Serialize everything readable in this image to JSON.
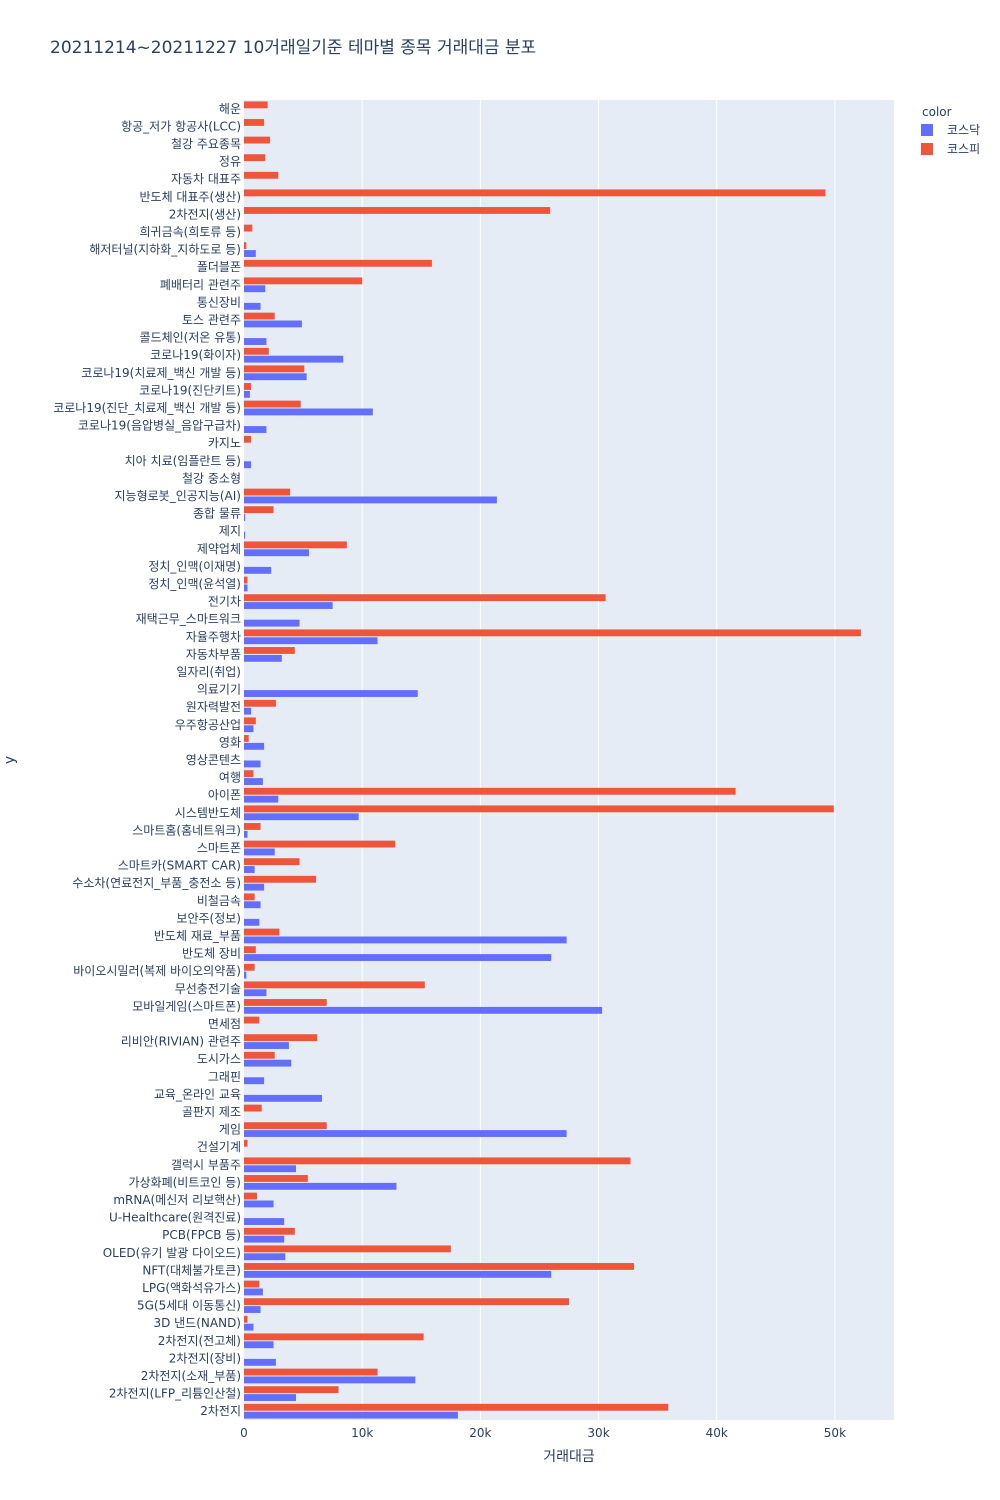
{
  "chart_data": {
    "type": "bar",
    "orientation": "horizontal",
    "barmode": "group",
    "title": "20211214~20211227 10거래일기준 테마별 종목 거래대금 분포",
    "xlabel": "거래대금",
    "ylabel": "y",
    "xlim": [
      0,
      55000
    ],
    "xticks": [
      {
        "value": 0,
        "label": "0"
      },
      {
        "value": 10000,
        "label": "10k"
      },
      {
        "value": 20000,
        "label": "20k"
      },
      {
        "value": 30000,
        "label": "30k"
      },
      {
        "value": 40000,
        "label": "40k"
      },
      {
        "value": 50000,
        "label": "50k"
      }
    ],
    "grid": true,
    "legend": {
      "title": "color",
      "position": "top-right"
    },
    "categories": [
      "2차전지",
      "2차전지(LFP_리튬인산철)",
      "2차전지(소재_부품)",
      "2차전지(장비)",
      "2차전지(전고체)",
      "3D 낸드(NAND)",
      "5G(5세대 이동통신)",
      "LPG(액화석유가스)",
      "NFT(대체불가토큰)",
      "OLED(유기 발광 다이오드)",
      "PCB(FPCB 등)",
      "U-Healthcare(원격진료)",
      "mRNA(메신저 리보핵산)",
      "가상화폐(비트코인 등)",
      "갤럭시 부품주",
      "건설기계",
      "게임",
      "골판지 제조",
      "교육_온라인 교육",
      "그래핀",
      "도시가스",
      "리비안(RIVIAN) 관련주",
      "면세점",
      "모바일게임(스마트폰)",
      "무선충전기술",
      "바이오시밀러(복제 바이오의약품)",
      "반도체 장비",
      "반도체 재료_부품",
      "보안주(정보)",
      "비철금속",
      "수소차(연료전지_부품_충전소 등)",
      "스마트카(SMART CAR)",
      "스마트폰",
      "스마트홈(홈네트워크)",
      "시스템반도체",
      "아이폰",
      "여행",
      "영상콘텐츠",
      "영화",
      "우주항공산업",
      "원자력발전",
      "의료기기",
      "일자리(취업)",
      "자동차부품",
      "자율주행차",
      "재택근무_스마트워크",
      "전기차",
      "정치_인맥(윤석열)",
      "정치_인맥(이재명)",
      "제약업체",
      "제지",
      "종합 물류",
      "지능형로봇_인공지능(AI)",
      "철강 중소형",
      "치아 치료(임플란트 등)",
      "카지노",
      "코로나19(음압병실_음압구급차)",
      "코로나19(진단_치료제_백신 개발 등)",
      "코로나19(진단키트)",
      "코로나19(치료제_백신 개발 등)",
      "코로나19(화이자)",
      "콜드체인(저온 유통)",
      "토스 관련주",
      "통신장비",
      "폐배터리 관련주",
      "폴더블폰",
      "해저터널(지하화_지하도로 등)",
      "희귀금속(희토류 등)",
      "2차전지(생산)",
      "반도체 대표주(생산)",
      "자동차 대표주",
      "정유",
      "철강 주요종목",
      "항공_저가 항공사(LCC)",
      "해운"
    ],
    "series": [
      {
        "name": "코스닥",
        "color": "#636efa",
        "values": [
          18100,
          4400,
          14500,
          2700,
          2500,
          800,
          1400,
          1600,
          26000,
          3500,
          3400,
          3400,
          2500,
          12900,
          4400,
          0,
          27300,
          0,
          6600,
          1700,
          4000,
          3800,
          0,
          30300,
          1900,
          200,
          26000,
          27300,
          1300,
          1400,
          1700,
          900,
          2600,
          300,
          9700,
          2900,
          1600,
          1400,
          1700,
          800,
          600,
          14700,
          0,
          3200,
          11300,
          4700,
          7500,
          300,
          2300,
          5500,
          100,
          100,
          21400,
          0,
          600,
          0,
          1900,
          10900,
          500,
          5300,
          8400,
          1900,
          4900,
          1400,
          1800,
          0,
          1000,
          0,
          0,
          0,
          0,
          0,
          0,
          0,
          0
        ]
      },
      {
        "name": "코스피",
        "color": "#ef553b",
        "values": [
          35900,
          8000,
          11300,
          0,
          15200,
          300,
          27500,
          1300,
          33000,
          17500,
          4300,
          0,
          1100,
          5400,
          32700,
          300,
          7000,
          1500,
          0,
          0,
          2600,
          6200,
          1300,
          7000,
          15300,
          900,
          1000,
          3000,
          0,
          900,
          6100,
          4700,
          12800,
          1400,
          49900,
          41600,
          800,
          0,
          400,
          1000,
          2700,
          0,
          0,
          4300,
          52200,
          0,
          30600,
          300,
          0,
          8700,
          0,
          2500,
          3900,
          0,
          0,
          600,
          0,
          4800,
          600,
          5100,
          2100,
          0,
          2600,
          0,
          10000,
          15900,
          200,
          700,
          25900,
          49200,
          2900,
          1800,
          2200,
          1700,
          2000
        ]
      }
    ]
  }
}
